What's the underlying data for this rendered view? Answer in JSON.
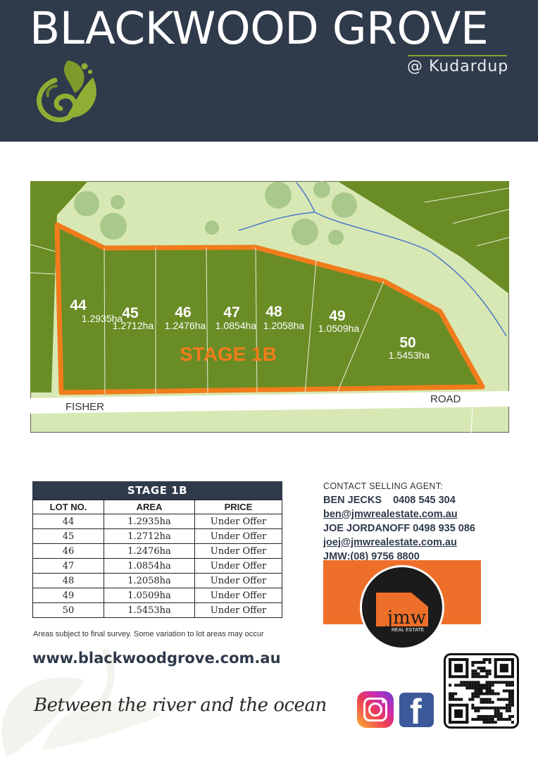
{
  "header": {
    "title": "BLACKWOOD GROVE",
    "subtitle": "@  Kudardup",
    "background": "#2f3a4b",
    "accent": "#8aa22c",
    "logo_icon": "leaf-swirl-logo"
  },
  "site_plan": {
    "stage_label": "STAGE 1B",
    "road_left": "FISHER",
    "road_right": "ROAD",
    "lots": [
      {
        "number": "44",
        "area": "1.2935ha"
      },
      {
        "number": "45",
        "area": "1.2712ha"
      },
      {
        "number": "46",
        "area": "1.2476ha"
      },
      {
        "number": "47",
        "area": "1.0854ha"
      },
      {
        "number": "48",
        "area": "1.2058ha"
      },
      {
        "number": "49",
        "area": "1.0509ha"
      },
      {
        "number": "50",
        "area": "1.5453ha"
      }
    ],
    "colors": {
      "lot_fill": "#6a8c25",
      "boundary": "#f07c1b",
      "reserve": "#d8e8b4",
      "creek": "#4a78c9"
    }
  },
  "table": {
    "title": "STAGE 1B",
    "columns": [
      "LOT NO.",
      "AREA",
      "PRICE"
    ],
    "rows": [
      [
        "44",
        "1.2935ha",
        "Under Offer"
      ],
      [
        "45",
        "1.2712ha",
        "Under Offer"
      ],
      [
        "46",
        "1.2476ha",
        "Under Offer"
      ],
      [
        "47",
        "1.0854ha",
        "Under Offer"
      ],
      [
        "48",
        "1.2058ha",
        "Under Offer"
      ],
      [
        "49",
        "1.0509ha",
        "Under Offer"
      ],
      [
        "50",
        "1.5453ha",
        "Under Offer"
      ]
    ],
    "disclaimer": "Areas subject to final survey.  Some variation to lot areas may occur"
  },
  "contact": {
    "heading": "CONTACT SELLING AGENT:",
    "agent1": "BEN JECKS    0408 545 304",
    "agent1_email": "ben@jmwrealestate.com.au",
    "agent2": "JOE JORDANOFF 0498 935 086",
    "agent2_email": "joej@jmwrealestate.com.au",
    "office": "JMW:(08) 9756 8800",
    "brand_color": "#ee6f2a"
  },
  "brand": {
    "logo_text": "jmw",
    "logo_sub": "REAL ESTATE"
  },
  "footer": {
    "website": "www.blackwoodgrove.com.au",
    "tagline": "Between the river and the ocean",
    "social_icons": [
      "instagram-icon",
      "facebook-icon"
    ],
    "facebook_glyph": "f",
    "qr_icon": "qr-code-icon"
  }
}
